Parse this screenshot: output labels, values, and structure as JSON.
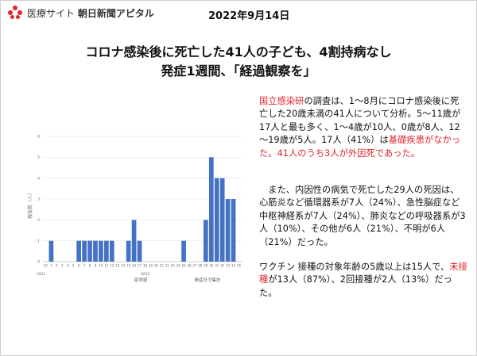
{
  "header": {
    "brand_prefix": "医療サイト",
    "brand_name": "朝日新聞アピタル",
    "date": "2022年9月14日"
  },
  "title": {
    "line1": "コロナ感染後に死亡した41人の子ども、4割持病なし",
    "line2": "発症1週間、「経過観察を」"
  },
  "body": {
    "p1": [
      {
        "text": "国立感染研",
        "red": true
      },
      {
        "text": "の調査は、1～8月にコロナ感染後に死亡した20歳未満の41人について分析。5～11歳が17人と最も多く、1～4歳が10人、0歳が8人、12～19歳が5人。17人（41%）は",
        "red": false
      },
      {
        "text": "基礎疾患がなかった。41人のうち3人が外因死であった。",
        "red": true
      }
    ],
    "p2": [
      {
        "text": "　また、内因性の病気で死亡した29人の死因は、心筋炎など循環器系が7人（24%）、急性脳症など中枢神経系が7人（24%）、肺炎などの呼吸器系が3人（10%）、その他が6人（21%）、不明が6人（21%）だった。",
        "red": false
      }
    ],
    "p3": [
      {
        "text": "ワクチン 接種の対象年齢の5歳以上は15人で、",
        "red": false
      },
      {
        "text": "未接種",
        "red": true
      },
      {
        "text": "が13人（87%）、2回接種が2人（13%）だった。",
        "red": false
      }
    ]
  },
  "colors": {
    "accent_red": "#e0262b",
    "bar_blue": "#4472c4"
  },
  "chart_data": {
    "type": "bar",
    "categories": [
      "52",
      "1",
      "2",
      "3",
      "4",
      "5",
      "6",
      "7",
      "8",
      "9",
      "10",
      "11",
      "12",
      "13",
      "14",
      "15",
      "16",
      "17",
      "18",
      "19",
      "20",
      "21",
      "22",
      "23",
      "24",
      "25",
      "26",
      "27",
      "28",
      "29",
      "30",
      "31",
      "32",
      "33",
      "34",
      "35"
    ],
    "values": [
      0,
      1,
      0,
      0,
      0,
      0,
      1,
      1,
      1,
      1,
      1,
      1,
      1,
      0,
      0,
      1,
      2,
      1,
      0,
      0,
      0,
      0,
      0,
      0,
      0,
      1,
      0,
      0,
      0,
      2,
      5,
      4,
      4,
      3,
      3,
      0
    ],
    "ylim": [
      0,
      6
    ],
    "yticks": [
      0,
      1,
      2,
      3,
      4,
      5,
      6
    ],
    "ylabel": "報告数（人）",
    "xlabel": "疫学週",
    "year_labels": [
      "2021",
      "2022"
    ],
    "note": "発症日で集計",
    "grid": true
  }
}
